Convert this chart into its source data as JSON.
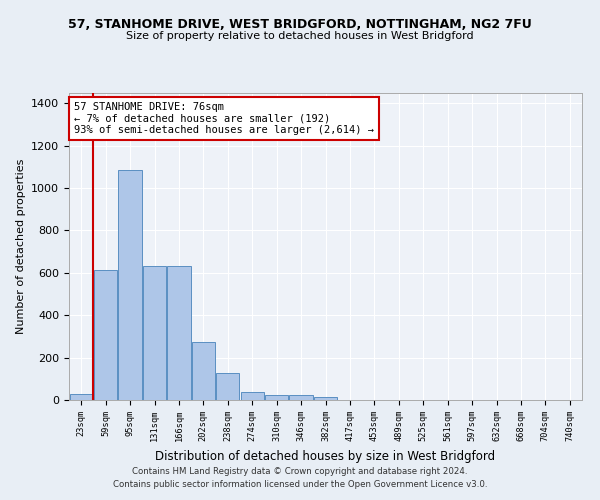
{
  "title1": "57, STANHOME DRIVE, WEST BRIDGFORD, NOTTINGHAM, NG2 7FU",
  "title2": "Size of property relative to detached houses in West Bridgford",
  "xlabel": "Distribution of detached houses by size in West Bridgford",
  "ylabel": "Number of detached properties",
  "bin_labels": [
    "23sqm",
    "59sqm",
    "95sqm",
    "131sqm",
    "166sqm",
    "202sqm",
    "238sqm",
    "274sqm",
    "310sqm",
    "346sqm",
    "382sqm",
    "417sqm",
    "453sqm",
    "489sqm",
    "525sqm",
    "561sqm",
    "597sqm",
    "632sqm",
    "668sqm",
    "704sqm",
    "740sqm"
  ],
  "bar_values": [
    30,
    615,
    1085,
    630,
    630,
    275,
    125,
    40,
    25,
    25,
    15,
    0,
    0,
    0,
    0,
    0,
    0,
    0,
    0,
    0,
    0
  ],
  "bar_color": "#aec6e8",
  "bar_edge_color": "#5a8fc2",
  "vline_x": 0.5,
  "vline_color": "#cc0000",
  "annotation_text": "57 STANHOME DRIVE: 76sqm\n← 7% of detached houses are smaller (192)\n93% of semi-detached houses are larger (2,614) →",
  "annotation_box_color": "#ffffff",
  "annotation_box_edge": "#cc0000",
  "ylim": [
    0,
    1450
  ],
  "yticks": [
    0,
    200,
    400,
    600,
    800,
    1000,
    1200,
    1400
  ],
  "footer1": "Contains HM Land Registry data © Crown copyright and database right 2024.",
  "footer2": "Contains public sector information licensed under the Open Government Licence v3.0.",
  "bg_color": "#e8eef5",
  "plot_bg": "#eef2f8"
}
